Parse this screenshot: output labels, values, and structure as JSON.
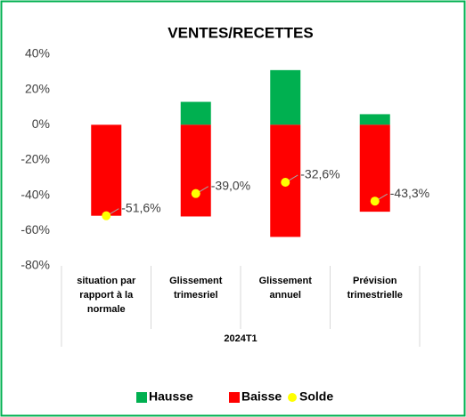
{
  "chart_data": {
    "type": "bar",
    "stacked": true,
    "title": "VENTES/RECETTES",
    "categories": [
      "situation par rapport à la normale",
      "Glissement trimesriel",
      "Glissement annuel",
      "Prévision trimestrielle"
    ],
    "group_label": "2024T1",
    "series": [
      {
        "name": "Hausse",
        "color": "#00b050",
        "type": "bar",
        "values": [
          0,
          13,
          31,
          6
        ]
      },
      {
        "name": "Baisse",
        "color": "#ff0000",
        "type": "bar",
        "values": [
          -51.6,
          -52,
          -63.6,
          -49.3
        ]
      },
      {
        "name": "Solde",
        "color": "#ffff00",
        "type": "point",
        "values": [
          -51.6,
          -39.0,
          -32.6,
          -43.3
        ],
        "value_labels": [
          "-51,6%",
          "-39,0%",
          "-32,6%",
          "-43,3%"
        ]
      }
    ],
    "ylim": [
      -80,
      40
    ],
    "yticks": [
      {
        "value": -80,
        "label": "-80%"
      },
      {
        "value": -60,
        "label": "-60%"
      },
      {
        "value": -40,
        "label": "-40%"
      },
      {
        "value": -20,
        "label": "-20%"
      },
      {
        "value": 0,
        "label": "0%"
      },
      {
        "value": 20,
        "label": "20%"
      },
      {
        "value": 40,
        "label": "40%"
      }
    ],
    "grid": false,
    "legend": "bottom"
  }
}
